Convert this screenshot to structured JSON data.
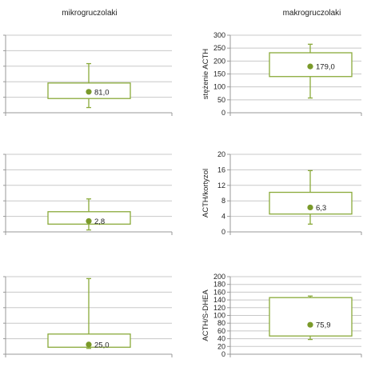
{
  "columns": [
    "mikrogruczolaki",
    "makrogruczolaki"
  ],
  "colors": {
    "box": "#8aaa3a",
    "dot": "#7a9a2a",
    "grid": "#c8c8c8"
  },
  "chart_data": [
    {
      "type": "box",
      "group": "mikrogruczolaki",
      "row": 0,
      "ylabel": "",
      "ylim": [
        0,
        300
      ],
      "ticks": [],
      "whisker_min": 20,
      "q1": 55,
      "median": 81.0,
      "q3": 115,
      "whisker_max": 190,
      "median_label": "81,0"
    },
    {
      "type": "box",
      "group": "makrogruczolaki",
      "row": 0,
      "ylabel": "stężenie ACTH",
      "ylim": [
        0,
        300
      ],
      "ticks": [
        "0",
        "50",
        "100",
        "150",
        "200",
        "250",
        "300"
      ],
      "whisker_min": 57,
      "q1": 140,
      "median": 179.0,
      "q3": 232,
      "whisker_max": 265,
      "median_label": "179,0"
    },
    {
      "type": "box",
      "group": "mikrogruczolaki",
      "row": 1,
      "ylabel": "",
      "ylim": [
        0,
        20
      ],
      "ticks": [],
      "whisker_min": 0.5,
      "q1": 2.0,
      "median": 2.8,
      "q3": 5.2,
      "whisker_max": 8.5,
      "median_label": "2,8"
    },
    {
      "type": "box",
      "group": "makrogruczolaki",
      "row": 1,
      "ylabel": "ACTH/kortyzol",
      "ylim": [
        0,
        20
      ],
      "ticks": [
        "0",
        "4",
        "8",
        "12",
        "16",
        "20"
      ],
      "whisker_min": 2.0,
      "q1": 4.6,
      "median": 6.3,
      "q3": 10.2,
      "whisker_max": 15.8,
      "median_label": "6,3"
    },
    {
      "type": "box",
      "group": "mikrogruczolaki",
      "row": 2,
      "ylabel": "",
      "ylim": [
        0,
        200
      ],
      "ticks": [],
      "whisker_min": 15,
      "q1": 18,
      "median": 25.0,
      "q3": 52,
      "whisker_max": 195,
      "median_label": "25,0"
    },
    {
      "type": "box",
      "group": "makrogruczolaki",
      "row": 2,
      "ylabel": "ACTH/S-DHEA",
      "ylim": [
        0,
        200
      ],
      "ticks": [
        "0",
        "20",
        "40",
        "60",
        "80",
        "100",
        "120",
        "140",
        "160",
        "180",
        "200"
      ],
      "whisker_min": 38,
      "q1": 47,
      "median": 75.9,
      "q3": 146,
      "whisker_max": 150,
      "median_label": "75,9"
    }
  ]
}
